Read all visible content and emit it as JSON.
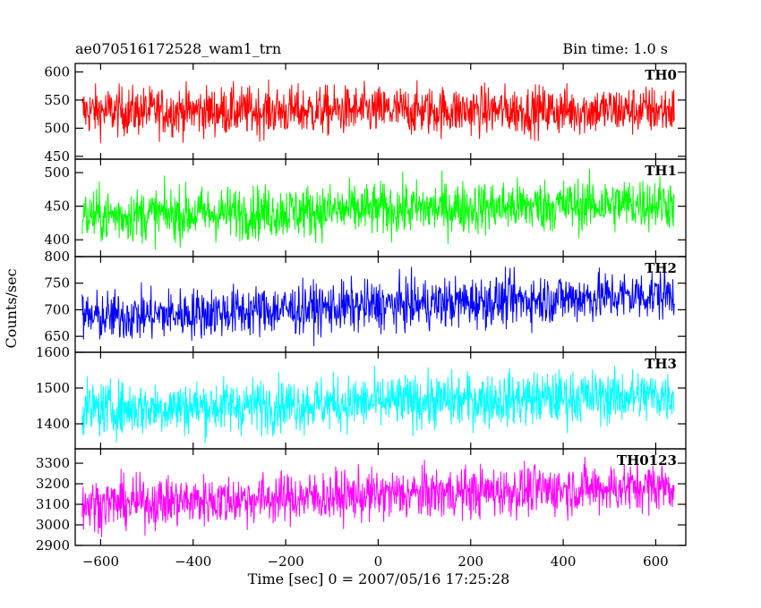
{
  "header": {
    "title": "ae070516172528_wam1_trn",
    "bin_time": "Bin time: 1.0 s"
  },
  "chart_data": {
    "type": "line",
    "xlabel": "Time [sec] 0 = 2007/05/16 17:25:28",
    "ylabel": "Counts/sec",
    "xlim": [
      -655,
      665
    ],
    "x_range": [
      -640,
      640
    ],
    "x_ticks": [
      -600,
      -400,
      -200,
      0,
      200,
      400,
      600
    ],
    "x_tick_labels": [
      "−600",
      "−400",
      "−200",
      "0",
      "200",
      "400",
      "600"
    ],
    "panels": [
      {
        "name": "TH0",
        "color": "#ff0000",
        "ylim": [
          445,
          615
        ],
        "yticks": [
          450,
          500,
          550,
          600
        ],
        "mean_start": 530,
        "mean_end": 532,
        "noise_amplitude": 22
      },
      {
        "name": "TH1",
        "color": "#00ff00",
        "ylim": [
          375,
          520
        ],
        "yticks": [
          400,
          450,
          500
        ],
        "mean_start": 435,
        "mean_end": 455,
        "noise_amplitude": 20
      },
      {
        "name": "TH2",
        "color": "#0000ff",
        "ylim": [
          620,
          800
        ],
        "yticks": [
          650,
          700,
          750,
          800
        ],
        "mean_start": 685,
        "mean_end": 730,
        "noise_amplitude": 24
      },
      {
        "name": "TH3",
        "color": "#00ffff",
        "ylim": [
          1330,
          1600
        ],
        "yticks": [
          1400,
          1500,
          1600
        ],
        "mean_start": 1440,
        "mean_end": 1480,
        "noise_amplitude": 38
      },
      {
        "name": "TH0123",
        "color": "#ff00ff",
        "ylim": [
          2900,
          3370
        ],
        "yticks": [
          2900,
          3000,
          3100,
          3200,
          3300
        ],
        "mean_start": 3100,
        "mean_end": 3190,
        "noise_amplitude": 62
      }
    ]
  }
}
